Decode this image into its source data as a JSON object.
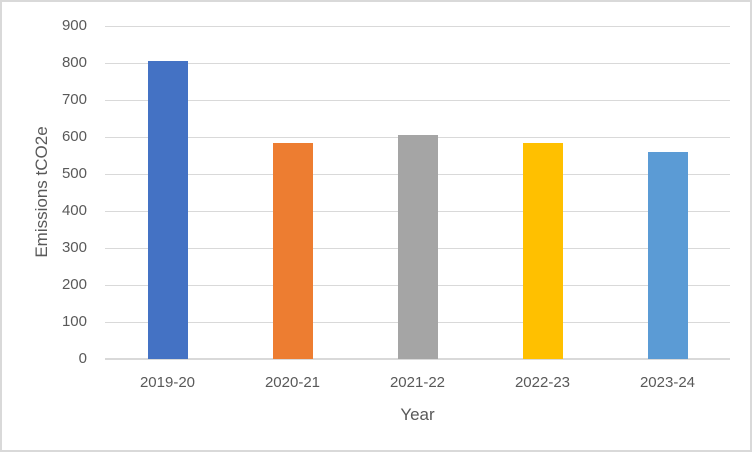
{
  "colors": {
    "background": "#FFFFFF",
    "frame_border": "#D9D9D9",
    "gridline": "#D9D9D9",
    "axis_line": "#D9D9D9",
    "text": "#595959"
  },
  "chart_data": {
    "type": "bar",
    "title": "",
    "categories": [
      "2019-20",
      "2020-21",
      "2021-22",
      "2022-23",
      "2023-24"
    ],
    "values": [
      805,
      585,
      605,
      585,
      560
    ],
    "bar_colors": [
      "#4472C4",
      "#ED7D31",
      "#A5A5A5",
      "#FFC000",
      "#5B9BD5"
    ],
    "xlabel": "Year",
    "ylabel": "Emissions tCO2e",
    "ylim": [
      0,
      900
    ],
    "ytick_step": 100,
    "yticks": [
      0,
      100,
      200,
      300,
      400,
      500,
      600,
      700,
      800,
      900
    ],
    "grid": true,
    "legend_position": "none"
  }
}
